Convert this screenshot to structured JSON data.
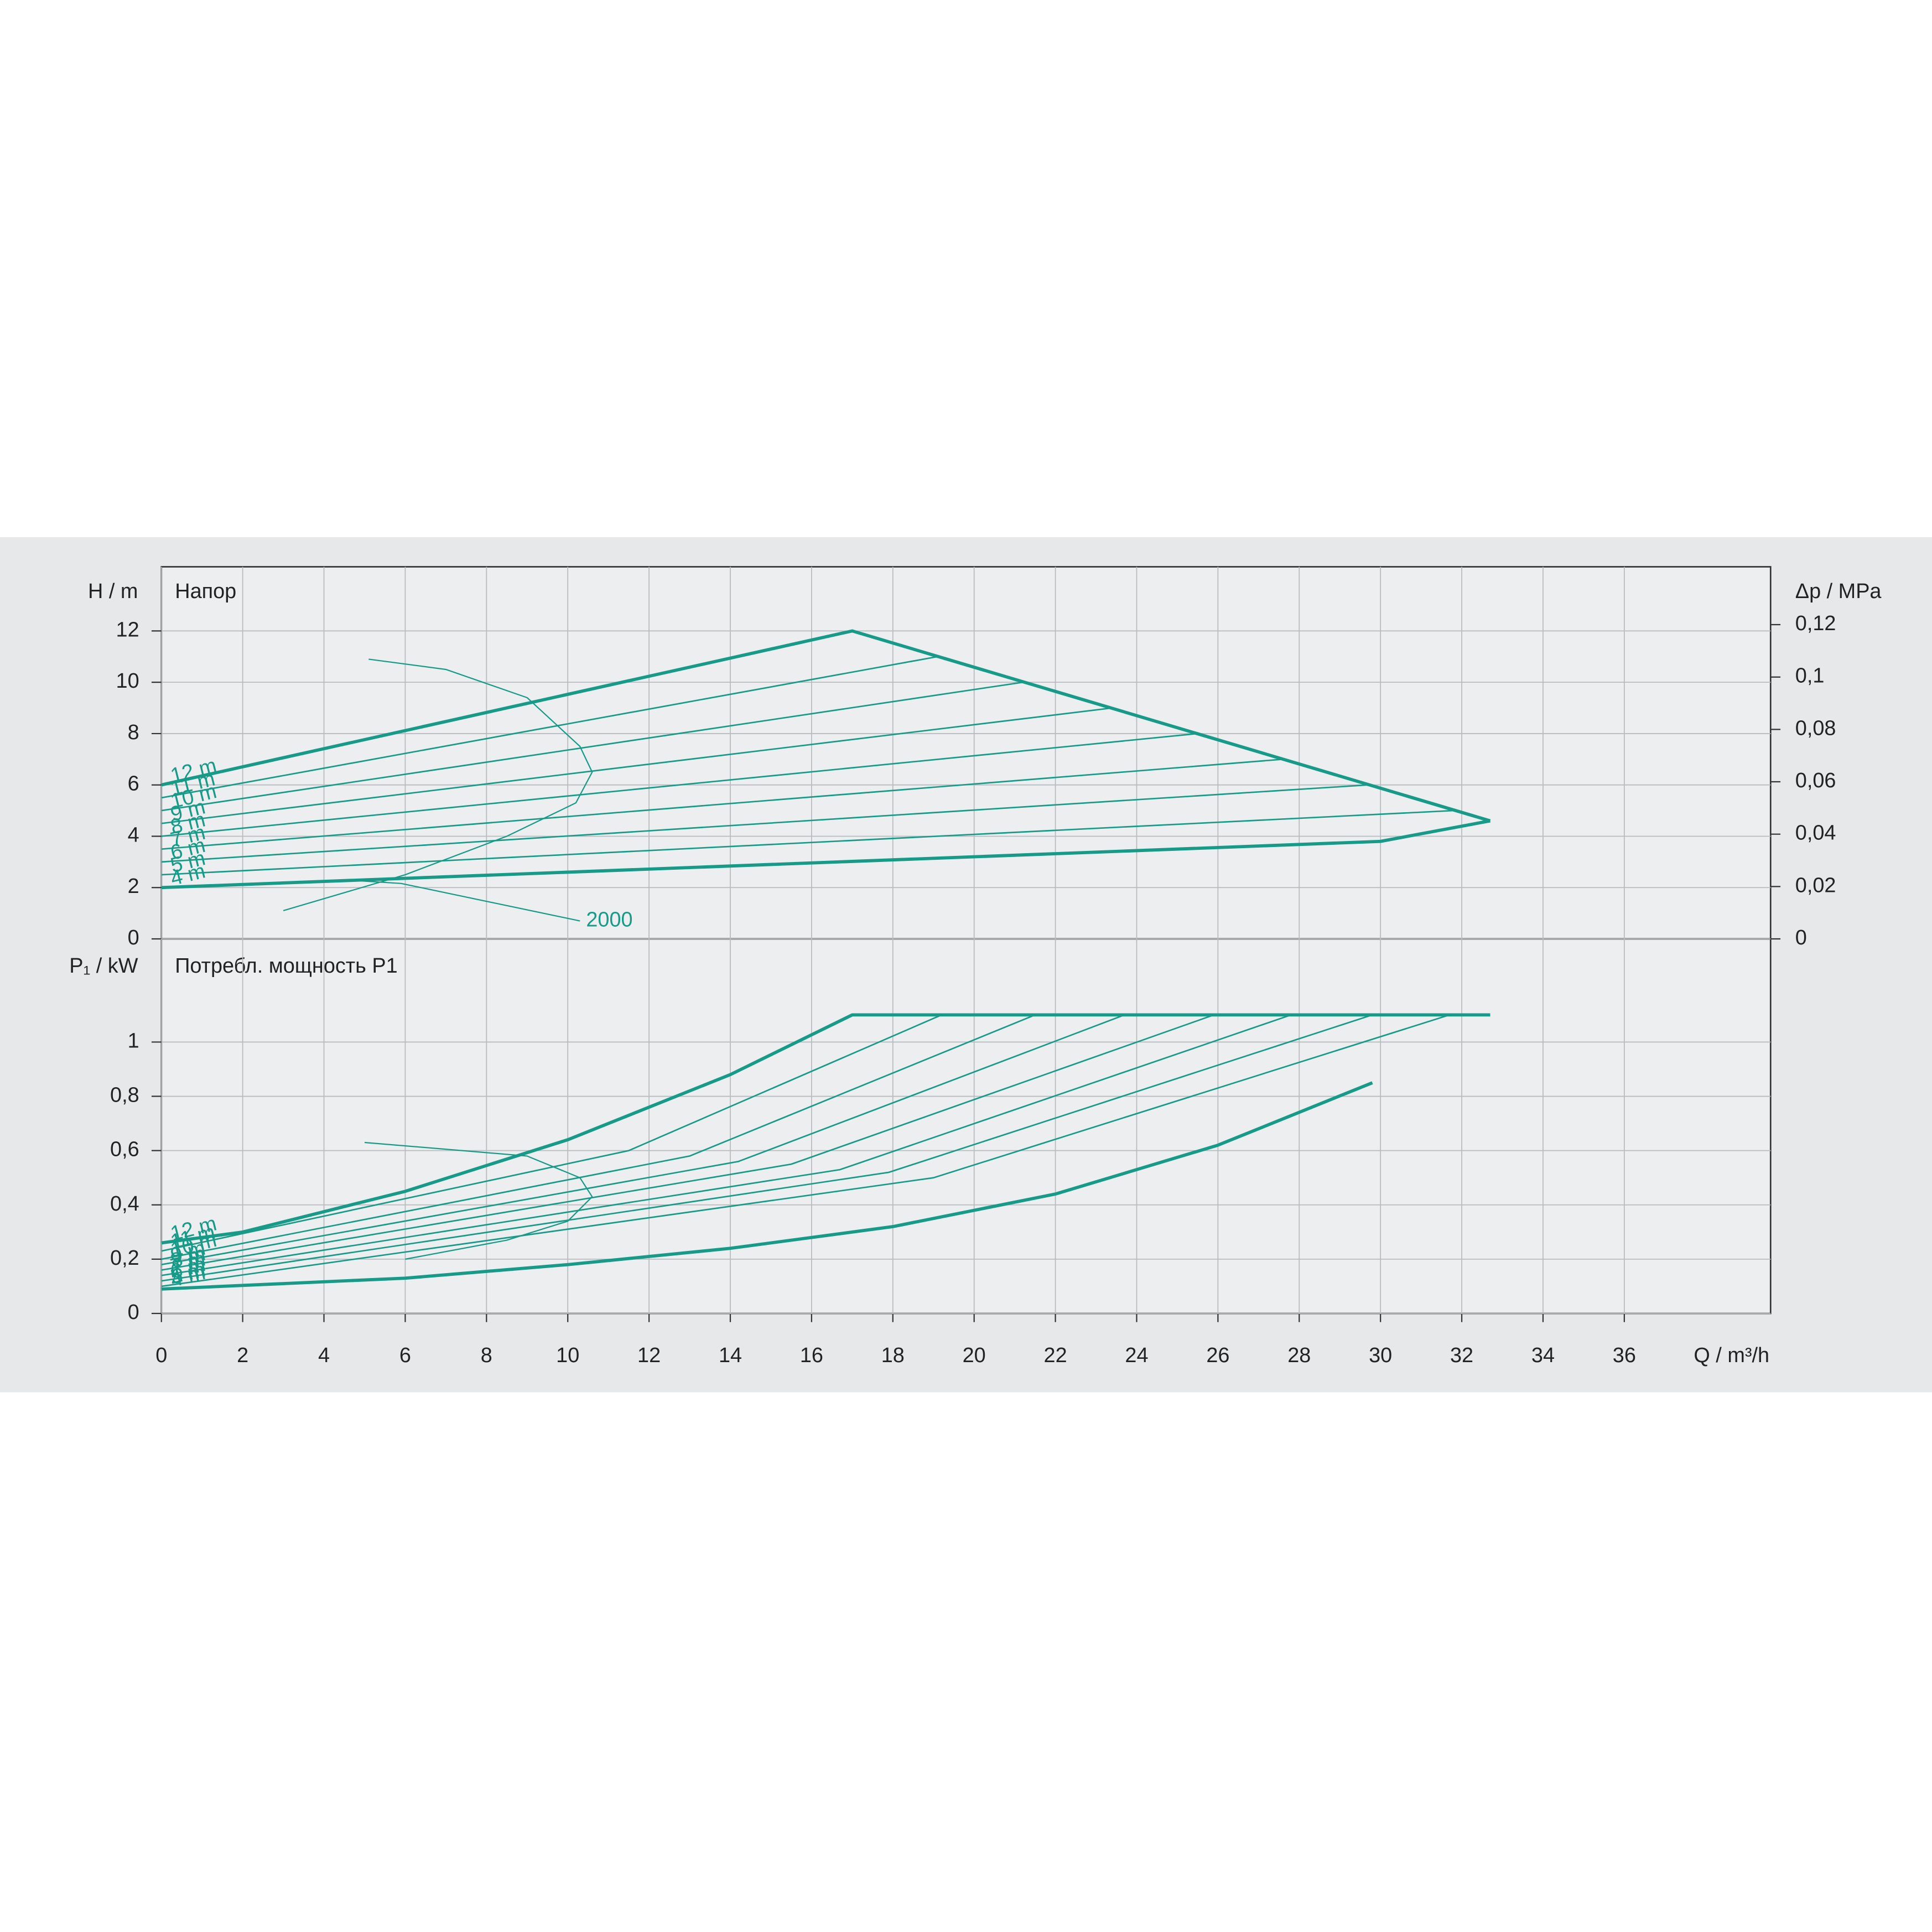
{
  "chart_data": [
    {
      "type": "line",
      "title": "Напор",
      "ylabel": "H / m",
      "y2label": "Δp / MPa",
      "xlim": [
        0,
        39.6
      ],
      "ylim": [
        0,
        14.5
      ],
      "yticks": [
        0,
        2,
        4,
        6,
        8,
        10,
        12
      ],
      "y2lim": [
        0,
        0.1421
      ],
      "y2ticks": [
        0,
        {
          "value": 0.02,
          "label": "0,02"
        },
        {
          "value": 0.04,
          "label": "0,04"
        },
        {
          "value": 0.06,
          "label": "0,06"
        },
        {
          "value": 0.08,
          "label": "0,08"
        },
        {
          "value": 0.1,
          "label": "0,1"
        },
        {
          "value": 0.12,
          "label": "0,12"
        }
      ],
      "grid": true,
      "series": [
        {
          "name": "12 m",
          "color": "#179a88",
          "line_width": 2.6,
          "x": [
            0,
            17,
            32.7
          ],
          "values": [
            6,
            12,
            4.6
          ]
        },
        {
          "name": "11 m",
          "color": "#179a88",
          "line_width": 1.2,
          "x": [
            0,
            19.1
          ],
          "values": [
            5.5,
            11
          ]
        },
        {
          "name": "10 m",
          "color": "#179a88",
          "line_width": 1.2,
          "x": [
            0,
            21.2
          ],
          "values": [
            5,
            10
          ]
        },
        {
          "name": "9 m",
          "color": "#179a88",
          "line_width": 1.2,
          "x": [
            0,
            23.4
          ],
          "values": [
            4.5,
            9
          ]
        },
        {
          "name": "8 m",
          "color": "#179a88",
          "line_width": 1.2,
          "x": [
            0,
            25.5
          ],
          "values": [
            4,
            8
          ]
        },
        {
          "name": "7 m",
          "color": "#179a88",
          "line_width": 1.2,
          "x": [
            0,
            27.6
          ],
          "values": [
            3.5,
            7
          ]
        },
        {
          "name": "6 m",
          "color": "#179a88",
          "line_width": 1.2,
          "x": [
            0,
            29.7
          ],
          "values": [
            3,
            6
          ]
        },
        {
          "name": "5 m",
          "color": "#179a88",
          "line_width": 1.2,
          "x": [
            0,
            31.8
          ],
          "values": [
            2.5,
            5
          ]
        },
        {
          "name": "4 m",
          "color": "#179a88",
          "line_width": 2.6,
          "x": [
            0,
            30,
            32.7
          ],
          "values": [
            2,
            3.8,
            4.6
          ]
        },
        {
          "name": "2000",
          "color": "#179a88",
          "line_width": 1,
          "x": [
            5.1,
            7,
            9,
            10.3,
            10.6,
            10.2,
            8.5,
            6,
            3,
            null,
            4.5,
            5.9,
            10.3
          ],
          "values": [
            10.9,
            10.5,
            9.4,
            7.5,
            6.5,
            5.3,
            4,
            2.5,
            1.1,
            null,
            2.3,
            2.16,
            0.7
          ]
        }
      ]
    },
    {
      "type": "line",
      "title": "Потребл. мощность P1",
      "ylabel": "P₁ / kW",
      "xlabel": "Q / m³/h",
      "xlim": [
        0,
        39.6
      ],
      "xticks": [
        0,
        2,
        4,
        6,
        8,
        10,
        12,
        14,
        16,
        18,
        20,
        22,
        24,
        26,
        28,
        30,
        32,
        34,
        36
      ],
      "ylim": [
        0,
        1.38
      ],
      "yticks": [
        0,
        {
          "value": 0.2,
          "label": "0,2"
        },
        {
          "value": 0.4,
          "label": "0,4"
        },
        {
          "value": 0.6,
          "label": "0,6"
        },
        {
          "value": 0.8,
          "label": "0,8"
        },
        1
      ],
      "grid": true,
      "series": [
        {
          "name": "12 m",
          "color": "#179a88",
          "line_width": 2.6,
          "x": [
            0,
            2,
            6,
            10,
            14,
            17,
            32.7
          ],
          "values": [
            0.26,
            0.3,
            0.45,
            0.64,
            0.88,
            1.1,
            1.1
          ]
        },
        {
          "name": "11 m",
          "color": "#179a88",
          "line_width": 1.2,
          "x": [
            0,
            11.5,
            19.2
          ],
          "values": [
            0.23,
            0.6,
            1.1
          ]
        },
        {
          "name": "10 m",
          "color": "#179a88",
          "line_width": 1.2,
          "x": [
            0,
            13,
            21.5
          ],
          "values": [
            0.2,
            0.58,
            1.1
          ]
        },
        {
          "name": "9 m",
          "color": "#179a88",
          "line_width": 1.2,
          "x": [
            0,
            14.2,
            23.7
          ],
          "values": [
            0.18,
            0.56,
            1.1
          ]
        },
        {
          "name": "8 m",
          "color": "#179a88",
          "line_width": 1.2,
          "x": [
            0,
            15.5,
            25.9
          ],
          "values": [
            0.16,
            0.55,
            1.1
          ]
        },
        {
          "name": "7 m",
          "color": "#179a88",
          "line_width": 1.2,
          "x": [
            0,
            16.7,
            27.8
          ],
          "values": [
            0.14,
            0.53,
            1.1
          ]
        },
        {
          "name": "6 m",
          "color": "#179a88",
          "line_width": 1.2,
          "x": [
            0,
            17.9,
            29.8
          ],
          "values": [
            0.12,
            0.52,
            1.1
          ]
        },
        {
          "name": "5 m",
          "color": "#179a88",
          "line_width": 1.2,
          "x": [
            0,
            19,
            31.7
          ],
          "values": [
            0.1,
            0.5,
            1.1
          ]
        },
        {
          "name": "4 m",
          "color": "#179a88",
          "line_width": 2.6,
          "x": [
            0,
            6,
            10,
            14,
            18,
            22,
            26,
            29.8
          ],
          "values": [
            0.09,
            0.13,
            0.18,
            0.24,
            0.32,
            0.44,
            0.62,
            0.85
          ]
        },
        {
          "color": "#179a88",
          "line_width": 1,
          "x": [
            5,
            9,
            10.3,
            10.6,
            10,
            8.5,
            6
          ],
          "values": [
            0.63,
            0.58,
            0.5,
            0.43,
            0.34,
            0.27,
            0.2
          ]
        }
      ]
    }
  ]
}
